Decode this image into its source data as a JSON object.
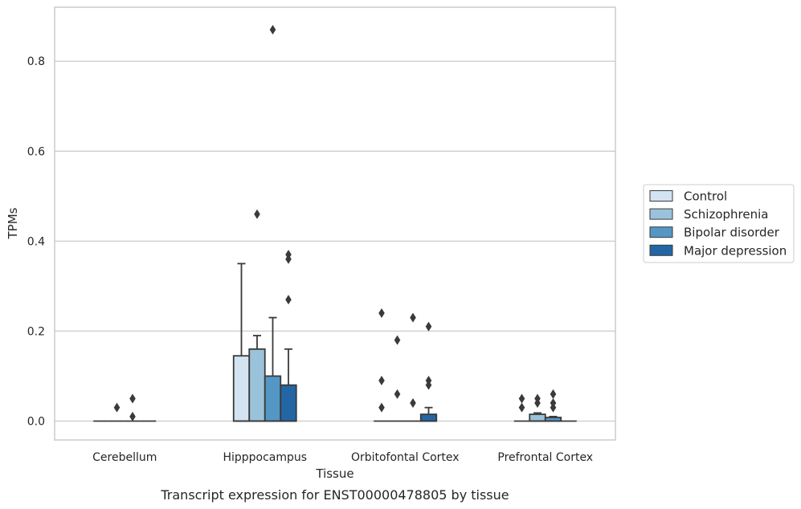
{
  "chart_data": {
    "type": "box",
    "title": "",
    "caption": "Transcript expression for ENST00000478805 by tissue",
    "xlabel": "Tissue",
    "ylabel": "TPMs",
    "ylim": [
      -0.042,
      0.92
    ],
    "yticks": [
      0.0,
      0.2,
      0.4,
      0.6,
      0.8
    ],
    "ytick_labels": [
      "0.0",
      "0.2",
      "0.4",
      "0.6",
      "0.8"
    ],
    "grid": "horizontal",
    "legend_position": "outside-right",
    "categories": [
      "Cerebellum",
      "Hipppocampus",
      "Orbitofontal Cortex",
      "Prefrontal Cortex"
    ],
    "series": [
      {
        "name": "Control",
        "color": "#d4e3f2",
        "boxes": [
          {
            "q1": 0,
            "median": 0,
            "q3": 0,
            "whislo": 0,
            "whishi": 0,
            "fliers": []
          },
          {
            "q1": 0,
            "median": 0,
            "q3": 0.145,
            "whislo": 0,
            "whishi": 0.35,
            "fliers": []
          },
          {
            "q1": 0,
            "median": 0,
            "q3": 0,
            "whislo": 0,
            "whishi": 0,
            "fliers": [
              0.24,
              0.09,
              0.03
            ]
          },
          {
            "q1": 0,
            "median": 0,
            "q3": 0,
            "whislo": 0,
            "whishi": 0,
            "fliers": [
              0.05,
              0.03
            ]
          }
        ]
      },
      {
        "name": "Schizophrenia",
        "color": "#9ac3db",
        "boxes": [
          {
            "q1": 0,
            "median": 0,
            "q3": 0,
            "whislo": 0,
            "whishi": 0,
            "fliers": [
              0.03
            ]
          },
          {
            "q1": 0,
            "median": 0,
            "q3": 0.16,
            "whislo": 0,
            "whishi": 0.19,
            "fliers": [
              0.46
            ]
          },
          {
            "q1": 0,
            "median": 0,
            "q3": 0,
            "whislo": 0,
            "whishi": 0,
            "fliers": [
              0.18,
              0.06
            ]
          },
          {
            "q1": 0,
            "median": 0,
            "q3": 0.015,
            "whislo": 0,
            "whishi": 0.018,
            "fliers": [
              0.05,
              0.04
            ]
          }
        ]
      },
      {
        "name": "Bipolar disorder",
        "color": "#5497c4",
        "boxes": [
          {
            "q1": 0,
            "median": 0,
            "q3": 0,
            "whislo": 0,
            "whishi": 0,
            "fliers": [
              0.05,
              0.01
            ]
          },
          {
            "q1": 0,
            "median": 0,
            "q3": 0.1,
            "whislo": 0,
            "whishi": 0.23,
            "fliers": [
              0.87
            ]
          },
          {
            "q1": 0,
            "median": 0,
            "q3": 0,
            "whislo": 0,
            "whishi": 0,
            "fliers": [
              0.23,
              0.04
            ]
          },
          {
            "q1": 0,
            "median": 0,
            "q3": 0.008,
            "whislo": 0,
            "whishi": 0.01,
            "fliers": [
              0.06,
              0.04,
              0.03
            ]
          }
        ]
      },
      {
        "name": "Major depression",
        "color": "#2366a5",
        "boxes": [
          {
            "q1": 0,
            "median": 0,
            "q3": 0,
            "whislo": 0,
            "whishi": 0,
            "fliers": []
          },
          {
            "q1": 0,
            "median": 0,
            "q3": 0.08,
            "whislo": 0,
            "whishi": 0.16,
            "fliers": [
              0.37,
              0.36,
              0.27
            ]
          },
          {
            "q1": 0,
            "median": 0,
            "q3": 0.015,
            "whislo": 0,
            "whishi": 0.03,
            "fliers": [
              0.21,
              0.09,
              0.08
            ]
          },
          {
            "q1": 0,
            "median": 0,
            "q3": 0,
            "whislo": 0,
            "whishi": 0,
            "fliers": []
          }
        ]
      }
    ]
  }
}
